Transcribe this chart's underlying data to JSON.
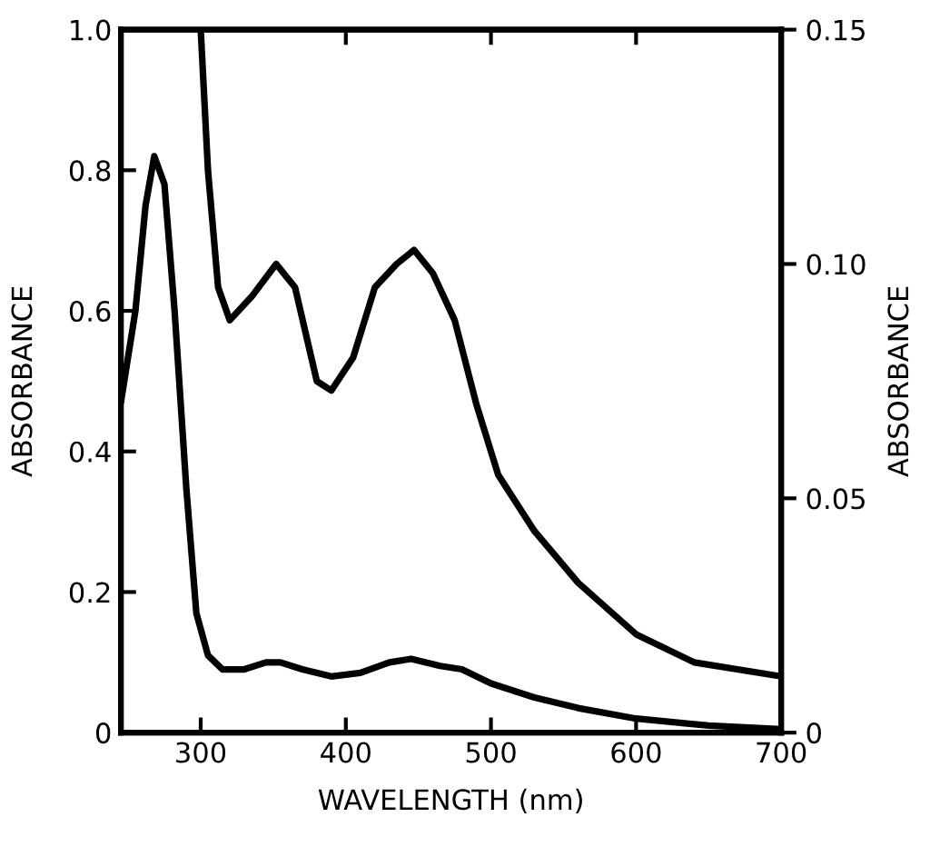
{
  "chart_data": {
    "type": "line",
    "xlabel": "WAVELENGTH (nm)",
    "ylabel": "ABSORBANCE",
    "y2label": "ABSORBANCE",
    "xlim": [
      245,
      700
    ],
    "xticks": [
      300,
      400,
      500,
      600,
      700
    ],
    "ylim": [
      0,
      1
    ],
    "yticks": [
      0,
      0.2,
      0.4,
      0.6,
      0.8,
      {
        "value": 1,
        "label": "1.0"
      }
    ],
    "y2lim": [
      0,
      0.15
    ],
    "y2ticks": [
      0,
      0.05,
      {
        "value": 0.1,
        "label": "0.10"
      },
      0.15
    ],
    "grid": false,
    "legend": false,
    "marker": "none",
    "line_style": "solid",
    "series": [
      {
        "color": "#000000",
        "axis": "y",
        "x": [
          245,
          255,
          262,
          268,
          275,
          282,
          290,
          297,
          305,
          315,
          330,
          345,
          355,
          370,
          390,
          410,
          430,
          445,
          465,
          480,
          500,
          530,
          560,
          600,
          650,
          700
        ],
        "values": [
          0.47,
          0.6,
          0.75,
          0.82,
          0.78,
          0.6,
          0.35,
          0.17,
          0.11,
          0.09,
          0.09,
          0.1,
          0.1,
          0.09,
          0.08,
          0.085,
          0.1,
          0.105,
          0.095,
          0.09,
          0.07,
          0.05,
          0.035,
          0.02,
          0.01,
          0.005
        ]
      },
      {
        "color": "#000000",
        "axis": "y2",
        "x": [
          300,
          305,
          312,
          320,
          335,
          352,
          365,
          380,
          390,
          405,
          420,
          435,
          447,
          460,
          475,
          490,
          505,
          530,
          560,
          600,
          640,
          700
        ],
        "values": [
          0.15,
          0.12,
          0.095,
          0.088,
          0.093,
          0.1,
          0.095,
          0.075,
          0.073,
          0.08,
          0.095,
          0.1,
          0.103,
          0.098,
          0.088,
          0.07,
          0.055,
          0.043,
          0.032,
          0.021,
          0.015,
          0.012
        ]
      }
    ]
  }
}
